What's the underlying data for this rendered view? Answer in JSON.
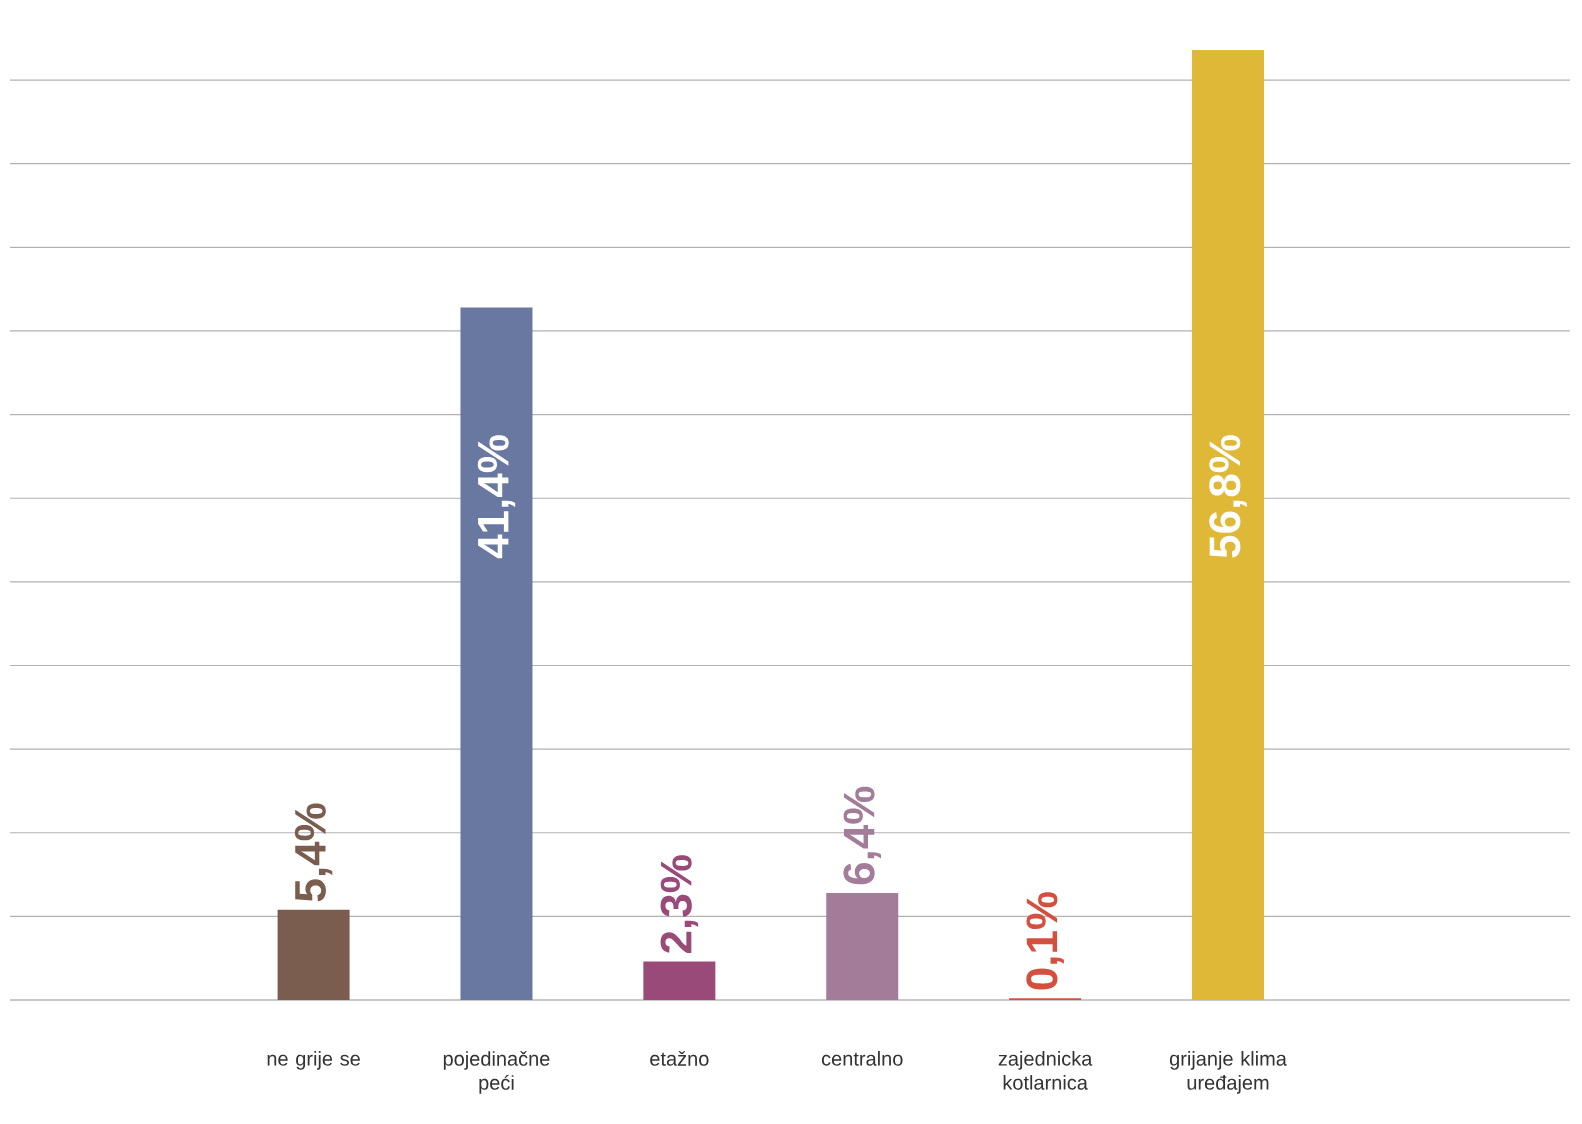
{
  "chart_data": {
    "type": "bar",
    "categories": [
      "ne grije se",
      "pojedinačne peći",
      "etažno",
      "centralno",
      "zajednicka kotlarnica",
      "grijanje klima uređajem"
    ],
    "values": [
      5.4,
      41.4,
      2.3,
      6.4,
      0.1,
      56.8
    ],
    "colors": [
      "#7b5d50",
      "#6878a0",
      "#9a4a78",
      "#a27c98",
      "#d4503e",
      "#e0b838"
    ],
    "value_labels": [
      "5,4%",
      "41,4%",
      "2,3%",
      "6,4%",
      "0,1%",
      "56,8%"
    ],
    "grid": "y",
    "tick_labels": "x"
  }
}
